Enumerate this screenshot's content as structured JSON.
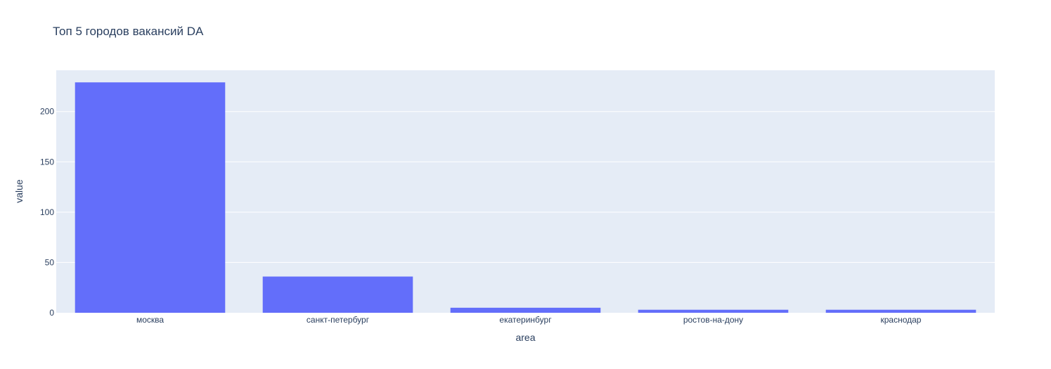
{
  "chart_data": {
    "type": "bar",
    "title": "Топ 5 городов вакансий DA",
    "xlabel": "area",
    "ylabel": "value",
    "categories": [
      "москва",
      "санкт-петербург",
      "екатеринбург",
      "ростов-на-дону",
      "краснодар"
    ],
    "values": [
      229,
      36,
      5,
      3,
      3
    ],
    "ylim": [
      0,
      241
    ],
    "yticks": [
      0,
      50,
      100,
      150,
      200
    ],
    "grid": true,
    "colors": {
      "bar": "#636efa",
      "plot_background": "#e5ecf6",
      "gridline": "#ffffff",
      "text": "#2a3f5f"
    }
  }
}
